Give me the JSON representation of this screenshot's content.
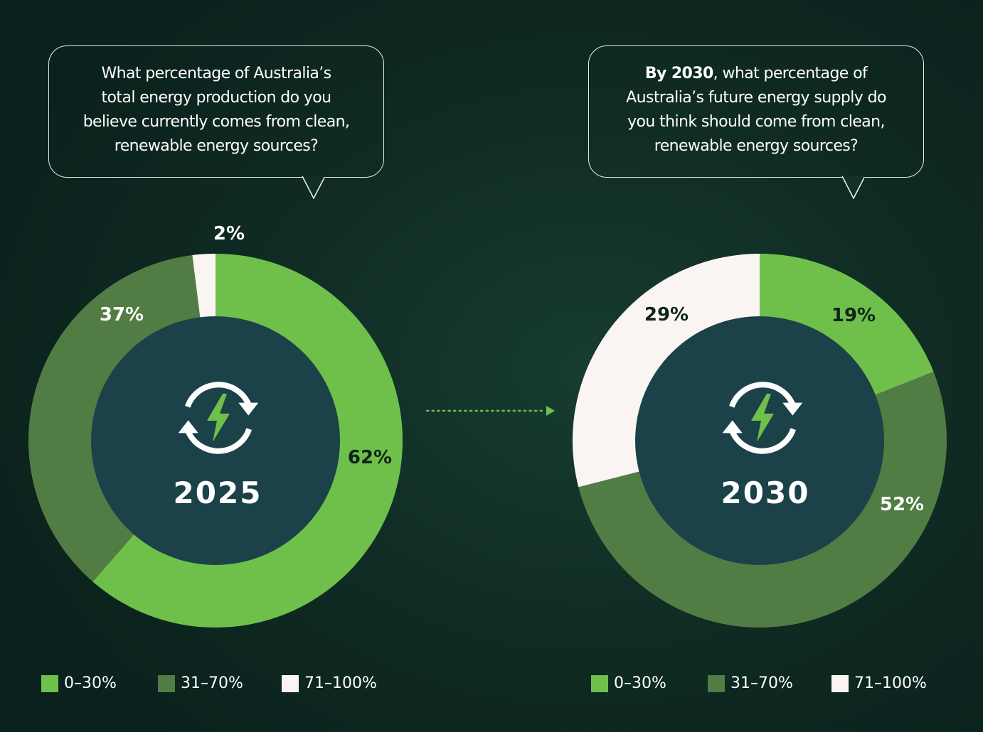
{
  "colors": {
    "light_green": "#6fc04b",
    "dark_green": "#517c43",
    "white": "#faf5f3",
    "center": "#1b4249",
    "bolt": "#6fc04b"
  },
  "left": {
    "question_lines": [
      "What percentage of Australia’s",
      "total energy production do you",
      "believe currently comes from clean,",
      "renewable energy sources?"
    ],
    "center_label": "2025",
    "icon": "renewable-energy-icon"
  },
  "right": {
    "question_bold": "By 2030",
    "question_lines": [
      ", what percentage of",
      "Australia’s future energy supply do",
      "you think should come from clean,",
      "renewable energy sources?"
    ],
    "center_label": "2030",
    "icon": "renewable-energy-icon"
  },
  "legend": [
    {
      "label": "0–30%",
      "color": "#6fc04b"
    },
    {
      "label": "31–70%",
      "color": "#517c43"
    },
    {
      "label": "71–100%",
      "color": "#faf5f3"
    }
  ],
  "chart_data": [
    {
      "type": "pie",
      "categories": [
        "0–30%",
        "31–70%",
        "71–100%"
      ],
      "values": [
        62,
        37,
        2
      ],
      "labels": [
        "62%",
        "37%",
        "2%"
      ]
    },
    {
      "type": "pie",
      "categories": [
        "0–30%",
        "31–70%",
        "71–100%"
      ],
      "values": [
        19,
        52,
        29
      ],
      "labels": [
        "19%",
        "52%",
        "29%"
      ]
    }
  ]
}
